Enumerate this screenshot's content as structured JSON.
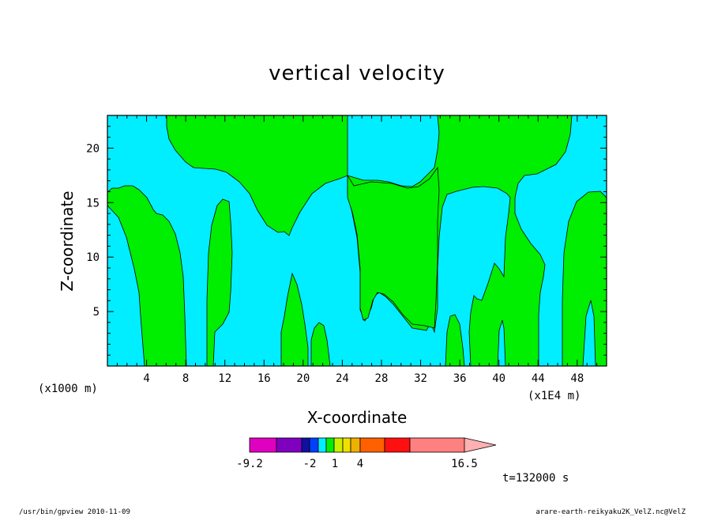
{
  "chart_data": {
    "type": "contour",
    "title": "vertical velocity",
    "xlabel": "X-coordinate",
    "ylabel": "Z-coordinate",
    "x_units_label": "(x1000 m)",
    "x_scale_label": "(x1E4 m)",
    "xlim": [
      0,
      51
    ],
    "ylim": [
      0,
      23
    ],
    "x_ticks": [
      4,
      8,
      12,
      16,
      20,
      24,
      28,
      32,
      36,
      40,
      44,
      48
    ],
    "y_ticks": [
      5,
      10,
      15,
      20
    ],
    "fill_colors": {
      "background": "#00eeff",
      "positive": "#00ee00"
    },
    "colorbar": {
      "tick_labels": [
        "-9.2",
        "-2",
        "1",
        "4",
        "16.5"
      ],
      "colors": [
        "#e000c0",
        "#8000c0",
        "#1010a0",
        "#0040ff",
        "#00eeff",
        "#00ee00",
        "#c8f000",
        "#f0e000",
        "#f0b000",
        "#ff6000",
        "#ff1010",
        "#ff8080",
        "#ffb0b0"
      ]
    },
    "time_label": "t=132000 s",
    "footer_left": "/usr/bin/gpview   2010-11-09",
    "footer_right": "arare-earth-reikyaku2K_VelZ.nc@VelZ"
  }
}
